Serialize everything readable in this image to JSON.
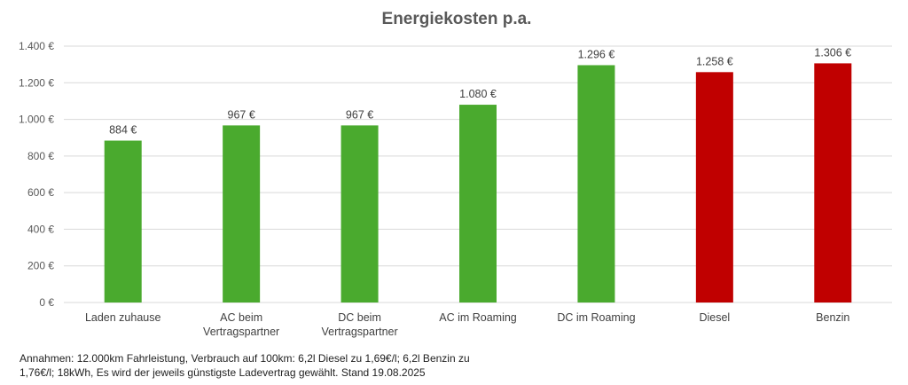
{
  "chart_data": {
    "type": "bar",
    "title": "Energiekosten p.a.",
    "xlabel": "",
    "ylabel": "",
    "ylim": [
      0,
      1400
    ],
    "y_ticks": [
      0,
      200,
      400,
      600,
      800,
      1000,
      1200,
      1400
    ],
    "y_tick_labels": [
      "0 €",
      "200 €",
      "400 €",
      "600 €",
      "800 €",
      "1.000 €",
      "1.200 €",
      "1.400 €"
    ],
    "grid": true,
    "legend": "none",
    "categories": [
      [
        "Laden zuhause"
      ],
      [
        "AC beim",
        "Vertragspartner"
      ],
      [
        "DC beim",
        "Vertragspartner"
      ],
      [
        "AC im Roaming"
      ],
      [
        "DC im Roaming"
      ],
      [
        "Diesel"
      ],
      [
        "Benzin"
      ]
    ],
    "values": [
      884,
      967,
      967,
      1080,
      1296,
      1258,
      1306
    ],
    "value_labels": [
      "884 €",
      "967 €",
      "967 €",
      "1.080 €",
      "1.296 €",
      "1.258 €",
      "1.306 €"
    ],
    "colors": [
      "#4aaa2e",
      "#4aaa2e",
      "#4aaa2e",
      "#4aaa2e",
      "#4aaa2e",
      "#c00000",
      "#c00000"
    ]
  },
  "footnote": {
    "line1": "Annahmen: 12.000km Fahrleistung, Verbrauch auf 100km: 6,2l Diesel zu 1,69€/l; 6,2l Benzin zu",
    "line2": "1,76€/l; 18kWh, Es wird der jeweils günstigste Ladevertrag gewählt. Stand 19.08.2025"
  }
}
